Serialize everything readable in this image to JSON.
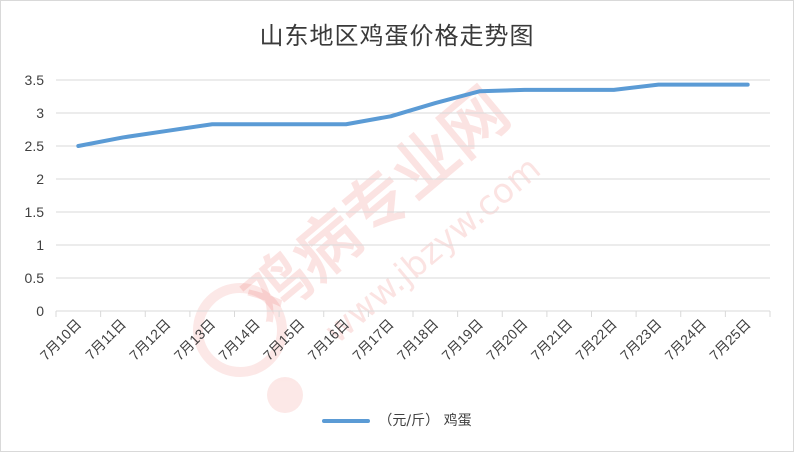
{
  "chart_data": {
    "type": "line",
    "title": "山东地区鸡蛋价格走势图",
    "categories": [
      "7月10日",
      "7月11日",
      "7月12日",
      "7月13日",
      "7月14日",
      "7月15日",
      "7月16日",
      "7月17日",
      "7月18日",
      "7月19日",
      "7月20日",
      "7月21日",
      "7月22日",
      "7月23日",
      "7月24日",
      "7月25日"
    ],
    "series": [
      {
        "name": "（元/斤） 鸡蛋",
        "color": "#5b9bd5",
        "values": [
          2.5,
          2.63,
          2.73,
          2.83,
          2.83,
          2.83,
          2.83,
          2.95,
          3.15,
          3.33,
          3.35,
          3.35,
          3.35,
          3.43,
          3.43,
          3.43
        ]
      }
    ],
    "yticks": [
      "0",
      "0.5",
      "1",
      "1.5",
      "2",
      "2.5",
      "3",
      "3.5"
    ],
    "ylim": [
      0,
      3.5
    ],
    "grid": true,
    "legend_position": "bottom"
  },
  "watermark": {
    "text_cn": "鸡病专业网",
    "text_url": "www.jbzyw.com",
    "color": "#e8423a"
  }
}
